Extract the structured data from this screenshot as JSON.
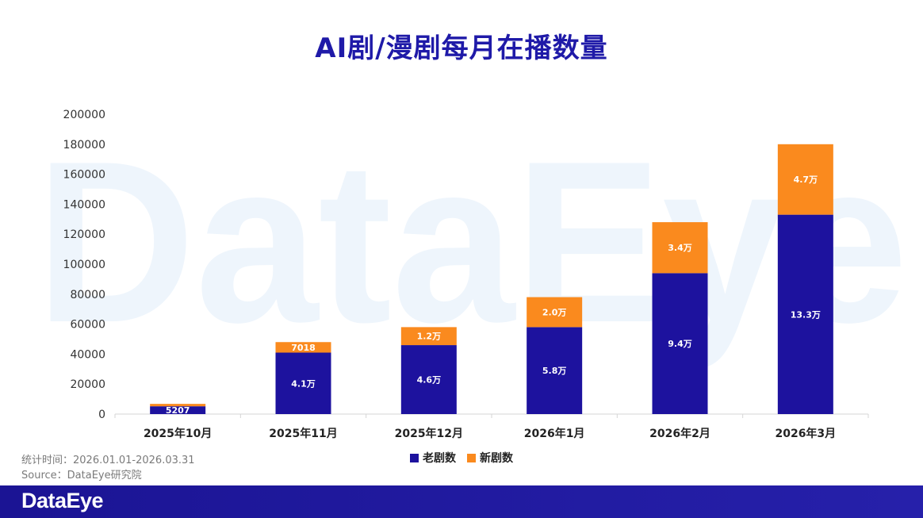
{
  "watermark": {
    "text": "DataEye"
  },
  "colors": {
    "title": "#1f1aa8",
    "watermark": "#eef5fc",
    "bottom_bar_start": "#1b1494",
    "bottom_bar_end": "#2620aa"
  },
  "chart_data": {
    "type": "bar",
    "stacked": true,
    "title": "AI剧/漫剧每月在播数量",
    "xlabel": "",
    "ylabel": "",
    "categories": [
      "2025年10月",
      "2025年11月",
      "2025年12月",
      "2026年1月",
      "2026年2月",
      "2026年3月"
    ],
    "series": [
      {
        "name": "老剧数",
        "color": "#1d129e",
        "values": [
          5207,
          41000,
          46000,
          58000,
          94000,
          133000
        ],
        "labels": [
          "5207",
          "4.1万",
          "4.6万",
          "5.8万",
          "9.4万",
          "13.3万"
        ]
      },
      {
        "name": "新剧数",
        "color": "#fa8a1e",
        "values": [
          1600,
          7018,
          12000,
          20000,
          34000,
          47000
        ],
        "labels": [
          "",
          "7018",
          "1.2万",
          "2.0万",
          "3.4万",
          "4.7万"
        ]
      }
    ],
    "ylim": [
      0,
      200000
    ],
    "yticks": [
      0,
      20000,
      40000,
      60000,
      80000,
      100000,
      120000,
      140000,
      160000,
      180000,
      200000
    ],
    "grid": false,
    "legend": "bottom-center"
  },
  "footer": {
    "stat_period": "统计时间：2026.01.01-2026.03.31",
    "source": "Source：DataEye研究院"
  },
  "brand": {
    "logo_text": "DataEye"
  }
}
